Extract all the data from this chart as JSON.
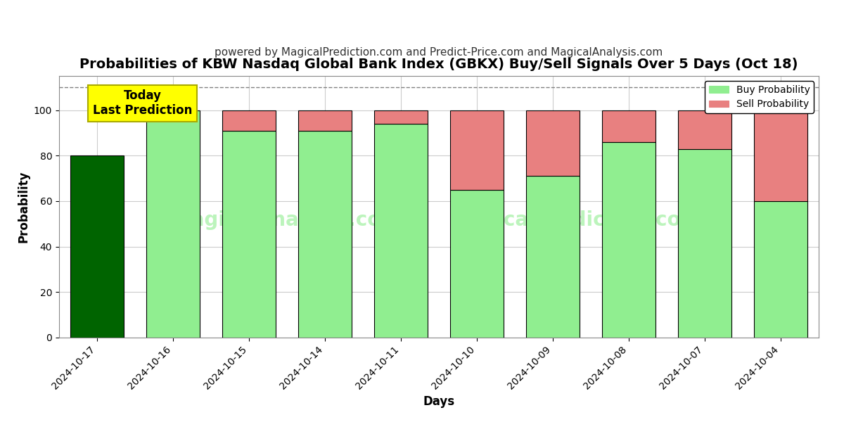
{
  "title": "Probabilities of KBW Nasdaq Global Bank Index (GBKX) Buy/Sell Signals Over 5 Days (Oct 18)",
  "subtitle": "powered by MagicalPrediction.com and Predict-Price.com and MagicalAnalysis.com",
  "xlabel": "Days",
  "ylabel": "Probability",
  "dates": [
    "2024-10-17",
    "2024-10-16",
    "2024-10-15",
    "2024-10-14",
    "2024-10-11",
    "2024-10-10",
    "2024-10-09",
    "2024-10-08",
    "2024-10-07",
    "2024-10-04"
  ],
  "buy_values": [
    80,
    100,
    91,
    91,
    94,
    65,
    71,
    86,
    83,
    60
  ],
  "sell_values": [
    0,
    0,
    9,
    9,
    6,
    35,
    29,
    14,
    17,
    40
  ],
  "today_bar_index": 0,
  "today_buy_color": "#006400",
  "light_green": "#90EE90",
  "sell_color": "#E88080",
  "annotation_text": "Today\nLast Prediction",
  "annotation_bg_color": "#FFFF00",
  "dashed_line_y": 110,
  "ylim": [
    0,
    115
  ],
  "yticks": [
    0,
    20,
    40,
    60,
    80,
    100
  ],
  "legend_buy_label": "Buy Probability",
  "legend_sell_label": "Sell Probability",
  "background_color": "#ffffff",
  "grid_color": "#cccccc",
  "bar_edge_color": "#000000",
  "title_fontsize": 14,
  "subtitle_fontsize": 11
}
